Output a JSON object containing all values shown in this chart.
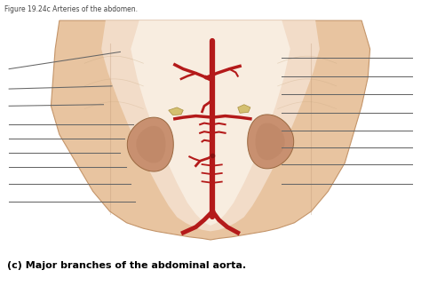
{
  "figure_title": "Figure 19.24c Arteries of the abdomen.",
  "caption": "(c) Major branches of the abdominal aorta.",
  "bg_color": "#ffffff",
  "figure_size": [
    4.74,
    3.22
  ],
  "dpi": 100,
  "title_fontsize": 5.5,
  "caption_fontsize": 8.0,
  "line_color": "#666666",
  "line_width": 0.75,
  "aorta_color": "#b41a1a",
  "skin_outer": "#e8c4a0",
  "skin_inner": "#f2dcc8",
  "skin_center": "#f8ede0",
  "kidney_color": "#c49070",
  "kidney_edge": "#a87050",
  "left_label_lines": [
    [
      [
        0.02,
        0.285
      ],
      [
        0.76,
        0.82
      ]
    ],
    [
      [
        0.02,
        0.265
      ],
      [
        0.69,
        0.7
      ]
    ],
    [
      [
        0.02,
        0.245
      ],
      [
        0.63,
        0.635
      ]
    ],
    [
      [
        0.02,
        0.315
      ],
      [
        0.565,
        0.565
      ]
    ],
    [
      [
        0.02,
        0.295
      ],
      [
        0.515,
        0.515
      ]
    ],
    [
      [
        0.02,
        0.285
      ],
      [
        0.465,
        0.465
      ]
    ],
    [
      [
        0.02,
        0.3
      ],
      [
        0.415,
        0.415
      ]
    ],
    [
      [
        0.02,
        0.31
      ],
      [
        0.355,
        0.355
      ]
    ],
    [
      [
        0.02,
        0.32
      ],
      [
        0.295,
        0.295
      ]
    ]
  ],
  "right_label_lines": [
    [
      [
        0.67,
        0.98
      ],
      [
        0.8,
        0.8
      ]
    ],
    [
      [
        0.67,
        0.98
      ],
      [
        0.735,
        0.735
      ]
    ],
    [
      [
        0.67,
        0.98
      ],
      [
        0.67,
        0.67
      ]
    ],
    [
      [
        0.67,
        0.98
      ],
      [
        0.605,
        0.605
      ]
    ],
    [
      [
        0.67,
        0.98
      ],
      [
        0.545,
        0.545
      ]
    ],
    [
      [
        0.67,
        0.98
      ],
      [
        0.485,
        0.485
      ]
    ],
    [
      [
        0.67,
        0.98
      ],
      [
        0.425,
        0.425
      ]
    ],
    [
      [
        0.67,
        0.98
      ],
      [
        0.355,
        0.355
      ]
    ]
  ]
}
